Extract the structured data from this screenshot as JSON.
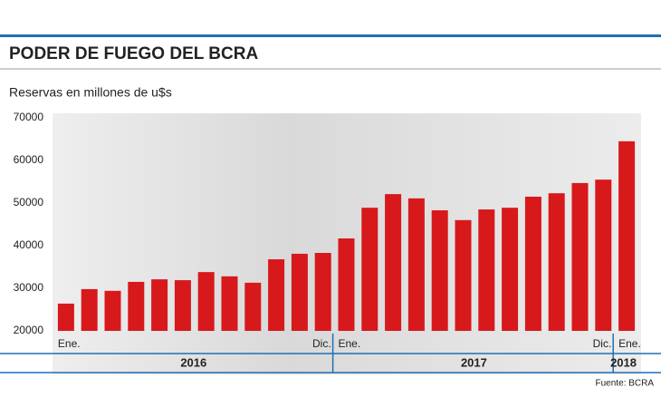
{
  "chart_data": {
    "type": "bar",
    "title": "PODER DE FUEGO DEL BCRA",
    "subtitle": "Reservas en millones de u$s",
    "source": "Fuente: BCRA",
    "categories": [
      "Ene.",
      null,
      null,
      null,
      null,
      null,
      null,
      null,
      null,
      null,
      null,
      "Dic.",
      "Ene.",
      null,
      null,
      null,
      null,
      null,
      null,
      null,
      null,
      null,
      null,
      "Dic.",
      "Ene."
    ],
    "years": [
      "2016",
      "2017",
      "2018"
    ],
    "values": [
      26400,
      29800,
      29400,
      31500,
      32100,
      31900,
      33800,
      32800,
      31300,
      36800,
      38100,
      38300,
      41700,
      48900,
      52100,
      51100,
      48300,
      46000,
      48500,
      48900,
      51500,
      52300,
      54700,
      55500,
      64500
    ],
    "color": "#d7191c",
    "ylim": [
      20000,
      70000
    ],
    "yticks": [
      20000,
      30000,
      40000,
      50000,
      60000,
      70000
    ]
  }
}
